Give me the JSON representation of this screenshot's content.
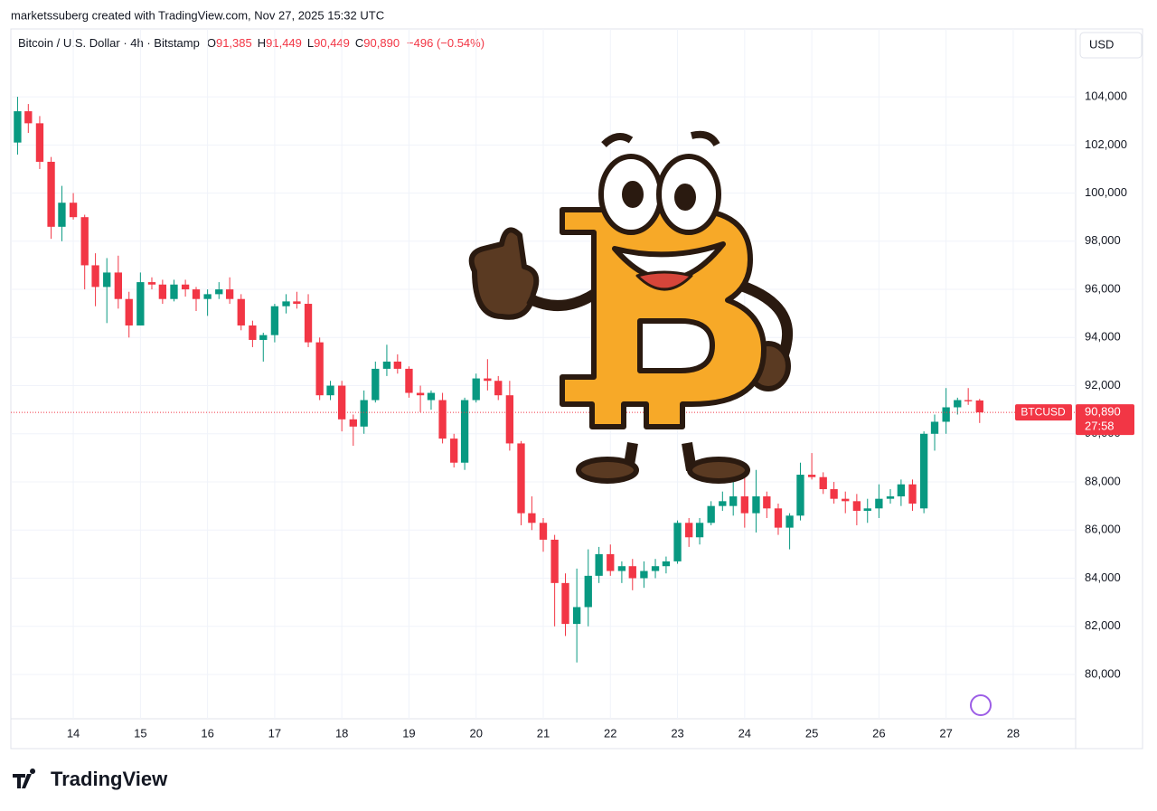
{
  "header": {
    "credit": "marketssuberg created with TradingView.com, Nov 27, 2025 15:32 UTC",
    "currency": "USD",
    "brand": "TradingView"
  },
  "legend": {
    "symbol": "Bitcoin / U.S. Dollar · 4h · Bitstamp",
    "o_label": "O",
    "open": "91,385",
    "h_label": "H",
    "high": "91,449",
    "l_label": "L",
    "low": "90,449",
    "c_label": "C",
    "close": "90,890",
    "change": "−496 (−0.54%)"
  },
  "chart_data": {
    "type": "candlestick",
    "up_color": "#089981",
    "down_color": "#f23645",
    "grid": true,
    "xlim": [
      13.07,
      28.93
    ],
    "xticks": [
      14,
      15,
      16,
      17,
      18,
      19,
      20,
      21,
      22,
      23,
      24,
      25,
      26,
      27,
      28
    ],
    "ylim": [
      78160,
      106820
    ],
    "yticks": [
      {
        "value": 80000,
        "label": "80,000"
      },
      {
        "value": 82000,
        "label": "82,000"
      },
      {
        "value": 84000,
        "label": "84,000"
      },
      {
        "value": 86000,
        "label": "86,000"
      },
      {
        "value": 88000,
        "label": "88,000"
      },
      {
        "value": 90000,
        "label": "90,000"
      },
      {
        "value": 92000,
        "label": "92,000"
      },
      {
        "value": 94000,
        "label": "94,000"
      },
      {
        "value": 96000,
        "label": "96,000"
      },
      {
        "value": 98000,
        "label": "98,000"
      },
      {
        "value": 100000,
        "label": "100,000"
      },
      {
        "value": 102000,
        "label": "102,000"
      },
      {
        "value": 104000,
        "label": "104,000"
      }
    ],
    "last_price": {
      "value": 90890,
      "label": "90,890"
    },
    "countdown": "27:58",
    "series": [
      {
        "name": "BTCUSD",
        "x": [
          13.17,
          13.33,
          13.5,
          13.67,
          13.83,
          14,
          14.17,
          14.33,
          14.5,
          14.67,
          14.83,
          15,
          15.17,
          15.33,
          15.5,
          15.67,
          15.83,
          16,
          16.17,
          16.33,
          16.5,
          16.67,
          16.83,
          17,
          17.17,
          17.33,
          17.5,
          17.67,
          17.83,
          18,
          18.17,
          18.33,
          18.5,
          18.67,
          18.83,
          19,
          19.17,
          19.33,
          19.5,
          19.67,
          19.83,
          20,
          20.17,
          20.33,
          20.5,
          20.67,
          20.83,
          21,
          21.17,
          21.33,
          21.5,
          21.67,
          21.83,
          22,
          22.17,
          22.33,
          22.5,
          22.67,
          22.83,
          23,
          23.17,
          23.33,
          23.5,
          23.67,
          23.83,
          24,
          24.17,
          24.33,
          24.5,
          24.67,
          24.83,
          25,
          25.17,
          25.33,
          25.5,
          25.67,
          25.83,
          26,
          26.17,
          26.33,
          26.5,
          26.67,
          26.83,
          27,
          27.17,
          27.33,
          27.5
        ],
        "open": [
          102100,
          103400,
          102900,
          101300,
          98600,
          99600,
          99000,
          97000,
          96100,
          96700,
          95600,
          94500,
          96300,
          96200,
          95600,
          96200,
          96000,
          95600,
          95800,
          96000,
          95600,
          94500,
          93900,
          94100,
          95300,
          95500,
          95400,
          93800,
          91600,
          92000,
          90600,
          90300,
          91400,
          92700,
          93000,
          92700,
          91700,
          91400,
          91400,
          89800,
          88800,
          91400,
          92300,
          92200,
          91600,
          89600,
          86700,
          86300,
          85600,
          83800,
          82100,
          82800,
          84100,
          85000,
          84300,
          84500,
          84000,
          84300,
          84500,
          84700,
          86300,
          85700,
          86300,
          87000,
          87000,
          87400,
          86700,
          87400,
          86900,
          86100,
          86600,
          88300,
          88200,
          87700,
          87300,
          87200,
          86800,
          86900,
          87300,
          87400,
          87900,
          86900,
          90000,
          90500,
          91100,
          91400,
          91385
        ],
        "high": [
          104000,
          103700,
          103200,
          101500,
          100300,
          100000,
          99100,
          97500,
          97300,
          97400,
          95900,
          96700,
          96500,
          96400,
          96400,
          96400,
          96100,
          96000,
          96300,
          96500,
          95800,
          94700,
          94200,
          95400,
          95800,
          95900,
          95800,
          94000,
          92200,
          92200,
          90800,
          91800,
          93000,
          93700,
          93300,
          92800,
          92000,
          91800,
          91700,
          90000,
          91500,
          92500,
          93100,
          92400,
          92200,
          89700,
          87400,
          86500,
          85800,
          84200,
          84400,
          85200,
          85300,
          85400,
          84700,
          84800,
          84700,
          84800,
          84900,
          86400,
          86500,
          86500,
          87200,
          87600,
          88100,
          88200,
          88500,
          87600,
          87100,
          86700,
          88800,
          89200,
          88400,
          88000,
          87600,
          87500,
          87300,
          87900,
          87700,
          88100,
          88100,
          90100,
          90800,
          91900,
          91500,
          91900,
          91449
        ],
        "low": [
          101600,
          102500,
          101000,
          98100,
          98000,
          98900,
          96000,
          95300,
          94600,
          95200,
          94000,
          94500,
          96000,
          95400,
          95500,
          95700,
          95100,
          94900,
          95600,
          95400,
          94300,
          93600,
          93000,
          93800,
          95000,
          95200,
          93600,
          91400,
          91400,
          90100,
          89500,
          90000,
          91300,
          92400,
          92500,
          91500,
          90900,
          91000,
          89600,
          88600,
          88500,
          91300,
          91800,
          91400,
          89300,
          86200,
          86000,
          85100,
          82000,
          81600,
          80500,
          82000,
          83800,
          84100,
          83800,
          83500,
          83600,
          84000,
          84200,
          84600,
          85300,
          85400,
          86200,
          86800,
          86600,
          86100,
          85900,
          86500,
          85800,
          85200,
          86400,
          88100,
          87500,
          87100,
          86700,
          86200,
          86300,
          86500,
          87100,
          87000,
          86800,
          86700,
          89300,
          90000,
          90800,
          91200,
          90449
        ],
        "close": [
          103400,
          102900,
          101300,
          98600,
          99600,
          99000,
          97000,
          96100,
          96700,
          95600,
          94500,
          96300,
          96200,
          95600,
          96200,
          96000,
          95600,
          95800,
          96000,
          95600,
          94500,
          93900,
          94100,
          95300,
          95500,
          95400,
          93800,
          91600,
          92000,
          90600,
          90300,
          91400,
          92700,
          93000,
          92700,
          91700,
          91600,
          91700,
          89800,
          88800,
          91400,
          92300,
          92200,
          91600,
          89600,
          86700,
          86300,
          85600,
          83800,
          82100,
          82800,
          84100,
          85000,
          84300,
          84500,
          84000,
          84300,
          84500,
          84700,
          86300,
          85700,
          86300,
          87000,
          87200,
          87400,
          86700,
          87400,
          86900,
          86100,
          86600,
          88300,
          88200,
          87700,
          87300,
          87200,
          86800,
          86900,
          87300,
          87400,
          87900,
          87100,
          90000,
          90500,
          91100,
          91400,
          91350,
          90890
        ]
      }
    ]
  }
}
